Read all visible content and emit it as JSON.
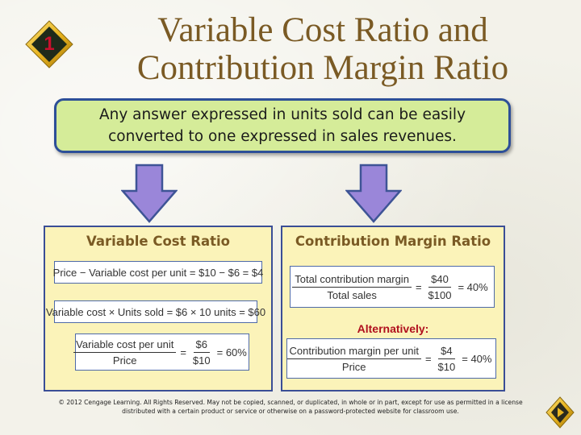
{
  "slide": {
    "number": "1",
    "title_line1": "Variable Cost Ratio and",
    "title_line2": "Contribution Margin Ratio",
    "callout_line1": "Any answer expressed in units sold can be easily",
    "callout_line2": "converted to one expressed in sales revenues."
  },
  "left_panel": {
    "heading": "Variable Cost Ratio",
    "eq1": "Price − Variable cost per unit = $10 − $6 = $4",
    "eq2": "Variable cost × Units sold = $6 × 10 units = $60",
    "eq3": {
      "num_label": "Variable cost per unit",
      "den_label": "Price",
      "eq_sign": "=",
      "num_val": "$6",
      "den_val": "$10",
      "result": "= 60%"
    }
  },
  "right_panel": {
    "heading": "Contribution Margin Ratio",
    "eq1": {
      "num_label": "Total contribution margin",
      "den_label": "Total sales",
      "eq_sign": "=",
      "num_val": "$40",
      "den_val": "$100",
      "result": "= 40%"
    },
    "alt_label": "Alternatively:",
    "eq2": {
      "num_label": "Contribution margin per unit",
      "den_label": "Price",
      "eq_sign": "=",
      "num_val": "$4",
      "den_val": "$10",
      "result": "= 40%"
    }
  },
  "footer": {
    "copyright_line1": "© 2012 Cengage Learning. All Rights Reserved. May not be copied, scanned, or duplicated, in whole or in part, except for use as permitted in a license",
    "copyright_line2": "distributed with a certain product or service or otherwise on a password-protected website for classroom use."
  },
  "colors": {
    "title": "#7a5a24",
    "callout_bg": "#d5ec99",
    "callout_border": "#2d4f98",
    "arrow_fill": "#9a86d9",
    "panel_bg": "#fbf3b9",
    "panel_border": "#3a4e96",
    "alt_label": "#b0101e",
    "badge": "#c8102e"
  },
  "icons": {
    "slide_badge": "diamond-number-icon",
    "arrows": "down-arrow-icon",
    "nav": "diamond-nav-icon"
  }
}
